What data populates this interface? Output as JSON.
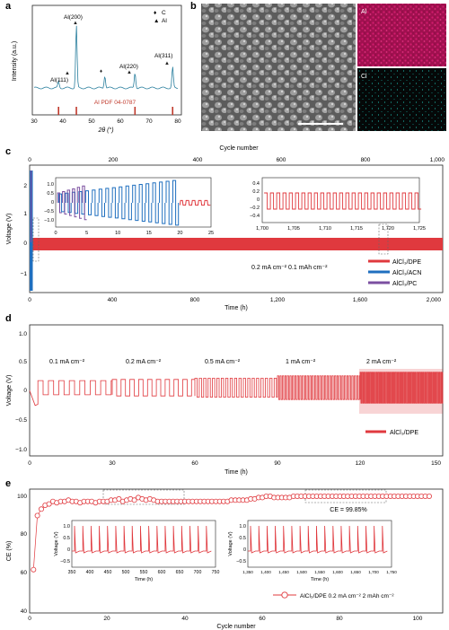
{
  "panels": {
    "a": {
      "letter": "a",
      "ylabel": "Intensity (a.u.)",
      "xlabel": "2θ (°)",
      "xticks": [
        "30",
        "40",
        "50",
        "60",
        "70",
        "80"
      ],
      "peak_labels": [
        "Al(111)",
        "Al(200)",
        "Al(220)",
        "Al(311)"
      ],
      "legend": [
        {
          "marker": "♦",
          "text": "C"
        },
        {
          "marker": "▲",
          "text": "Al"
        }
      ],
      "reference_label": "Al PDF 04-0787",
      "colors": {
        "pattern": "#2a7f9e",
        "reference": "#c0392b"
      }
    },
    "b": {
      "letter": "b",
      "map_labels": [
        "Al",
        "Cl"
      ],
      "colors": {
        "al_map": "#b3135f",
        "cl_map": "#16918f",
        "sem": "#8a8a8a"
      }
    },
    "c": {
      "letter": "c",
      "top_axis_label": "Cycle number",
      "top_ticks": [
        "0",
        "200",
        "400",
        "600",
        "800",
        "1,000"
      ],
      "ylabel": "Voltage (V)",
      "xlabel": "Time (h)",
      "yticks": [
        "2",
        "1",
        "0",
        "−1"
      ],
      "xticks": [
        "0",
        "400",
        "800",
        "1,200",
        "1,600",
        "2,000"
      ],
      "inset1_xticks": [
        "0",
        "5",
        "10",
        "15",
        "20",
        "25"
      ],
      "inset1_yticks": [
        "1.0",
        "0.5",
        "0",
        "−0.5",
        "−1.0"
      ],
      "inset2_xticks": [
        "1,700",
        "1,705",
        "1,710",
        "1,715",
        "1,720",
        "1,725"
      ],
      "inset2_yticks": [
        "0.4",
        "0.2",
        "0",
        "−0.2",
        "−0.4"
      ],
      "condition": "0.2 mA cm⁻²  0.1 mAh cm⁻²",
      "legend": [
        "AlCl₃/DPE",
        "AlCl₃/ACN",
        "AlCl₃/PC"
      ],
      "colors": {
        "dpe": "#e0393e",
        "acn": "#1f6fbf",
        "pc": "#7b4fa0"
      }
    },
    "d": {
      "letter": "d",
      "ylabel": "Voltage (V)",
      "xlabel": "Time (h)",
      "yticks": [
        "1.0",
        "0.5",
        "0",
        "−0.5",
        "−1.0"
      ],
      "xticks": [
        "0",
        "30",
        "60",
        "90",
        "120",
        "150"
      ],
      "rate_labels": [
        "0.1 mA cm⁻²",
        "0.2 mA cm⁻²",
        "0.5 mA cm⁻²",
        "1 mA cm⁻²",
        "2 mA cm⁻²"
      ],
      "legend": "AlCl₃/DPE",
      "color": "#e0393e"
    },
    "e": {
      "letter": "e",
      "ylabel": "CE (%)",
      "xlabel": "Cycle number",
      "yticks": [
        "100",
        "80",
        "60",
        "40"
      ],
      "xticks": [
        "0",
        "20",
        "40",
        "60",
        "80",
        "100"
      ],
      "ce_note": "CE = 99.85%",
      "inset1_xticks": [
        "350",
        "400",
        "450",
        "500",
        "550",
        "600",
        "650",
        "700",
        "750"
      ],
      "inset2_xticks": [
        "1,350",
        "1,400",
        "1,450",
        "1,500",
        "1,550",
        "1,600",
        "1,650",
        "1,700",
        "1,750"
      ],
      "inset_ylabel": "Voltage (V)",
      "inset_xlabel": "Time (h)",
      "inset_yticks": [
        "1.0",
        "0.5",
        "0",
        "−0.5"
      ],
      "legend": "AlCl₃/DPE 0.2 mA cm⁻² 2 mAh cm⁻²",
      "color": "#e0393e"
    }
  },
  "chart_data": [
    {
      "type": "line",
      "panel": "a",
      "xlabel": "2θ (°)",
      "ylabel": "Intensity (a.u.)",
      "xlim": [
        30,
        80
      ],
      "peaks": [
        {
          "x": 38.5,
          "label": "Al(111)",
          "rel_height": 0.1
        },
        {
          "x": 44.7,
          "label": "Al(200)",
          "rel_height": 1.0
        },
        {
          "x": 54.6,
          "label": "C",
          "rel_height": 0.2
        },
        {
          "x": 65.1,
          "label": "Al(220)",
          "rel_height": 0.25
        },
        {
          "x": 78.2,
          "label": "Al(311)",
          "rel_height": 0.33
        }
      ],
      "reference_lines_x": [
        38.5,
        44.7,
        65.1,
        78.2
      ]
    },
    {
      "type": "line",
      "panel": "c",
      "xlabel": "Time (h)",
      "ylabel": "Voltage (V)",
      "xlim": [
        0,
        2000
      ],
      "ylim": [
        -1.5,
        2.5
      ],
      "series": [
        {
          "name": "AlCl₃/DPE",
          "duration_h": 2000,
          "amplitude_v": 0.18
        },
        {
          "name": "AlCl₃/ACN",
          "duration_h": 20,
          "amplitude_v": 1.0
        },
        {
          "name": "AlCl₃/PC",
          "duration_h": 5,
          "amplitude_v": 1.0
        }
      ]
    },
    {
      "type": "line",
      "panel": "d",
      "xlabel": "Time (h)",
      "ylabel": "Voltage (V)",
      "xlim": [
        0,
        150
      ],
      "ylim": [
        -1.0,
        1.0
      ],
      "segments": [
        {
          "rate": "0.1 mA cm⁻²",
          "start_h": 0,
          "end_h": 30,
          "amplitude_v": 0.12
        },
        {
          "rate": "0.2 mA cm⁻²",
          "start_h": 30,
          "end_h": 60,
          "amplitude_v": 0.14
        },
        {
          "rate": "0.5 mA cm⁻²",
          "start_h": 60,
          "end_h": 90,
          "amplitude_v": 0.16
        },
        {
          "rate": "1 mA cm⁻²",
          "start_h": 90,
          "end_h": 120,
          "amplitude_v": 0.2
        },
        {
          "rate": "2 mA cm⁻²",
          "start_h": 120,
          "end_h": 150,
          "amplitude_v": 0.26
        }
      ]
    },
    {
      "type": "scatter",
      "panel": "e",
      "xlabel": "Cycle number",
      "ylabel": "CE (%)",
      "xlim": [
        0,
        104
      ],
      "ylim": [
        40,
        102
      ],
      "series": [
        {
          "name": "AlCl₃/DPE 0.2 mA cm⁻² 2 mAh cm⁻²",
          "x": [
            1,
            2,
            3,
            4,
            5,
            6,
            7,
            8,
            9,
            10,
            11,
            12,
            13,
            14,
            15,
            16,
            17,
            18,
            19,
            20,
            21,
            22,
            23,
            24,
            25,
            26,
            27,
            28,
            29,
            30,
            31,
            32,
            33,
            34,
            35,
            36,
            37,
            38,
            39,
            40,
            41,
            42,
            43,
            44,
            45,
            46,
            47,
            48,
            49,
            50,
            51,
            52,
            53,
            54,
            55,
            56,
            57,
            58,
            59,
            60,
            61,
            62,
            63,
            64,
            65,
            66,
            67,
            68,
            69,
            70,
            71,
            72,
            73,
            74,
            75,
            76,
            77,
            78,
            79,
            80,
            81,
            82,
            83,
            84,
            85,
            86,
            87,
            88,
            89,
            90,
            91,
            92,
            93,
            94,
            95,
            96,
            97,
            98,
            99,
            100,
            101,
            102,
            103
          ],
          "y": [
            43,
            85,
            90,
            93,
            94,
            96,
            95,
            96,
            96,
            97,
            96,
            96,
            95,
            96,
            96,
            96,
            95,
            96,
            96,
            96,
            97,
            97,
            98,
            96,
            97,
            98,
            97,
            99,
            98,
            97,
            98,
            97,
            96,
            96,
            96,
            96,
            96,
            96,
            96,
            96,
            96,
            96,
            96,
            96,
            96,
            96,
            96,
            96,
            96,
            96,
            96,
            97,
            97,
            97,
            97,
            97,
            98,
            98,
            99,
            99,
            100,
            100,
            99,
            99,
            99,
            99,
            99,
            100,
            100,
            100,
            100,
            100,
            100,
            100,
            100,
            100,
            100,
            100,
            100,
            100,
            100,
            100,
            100,
            100,
            100,
            100,
            100,
            100,
            100,
            100,
            100,
            100,
            100,
            100,
            100,
            100,
            100,
            100,
            100,
            100,
            100,
            100,
            100
          ]
        }
      ],
      "annotation": "CE = 99.85%"
    }
  ]
}
